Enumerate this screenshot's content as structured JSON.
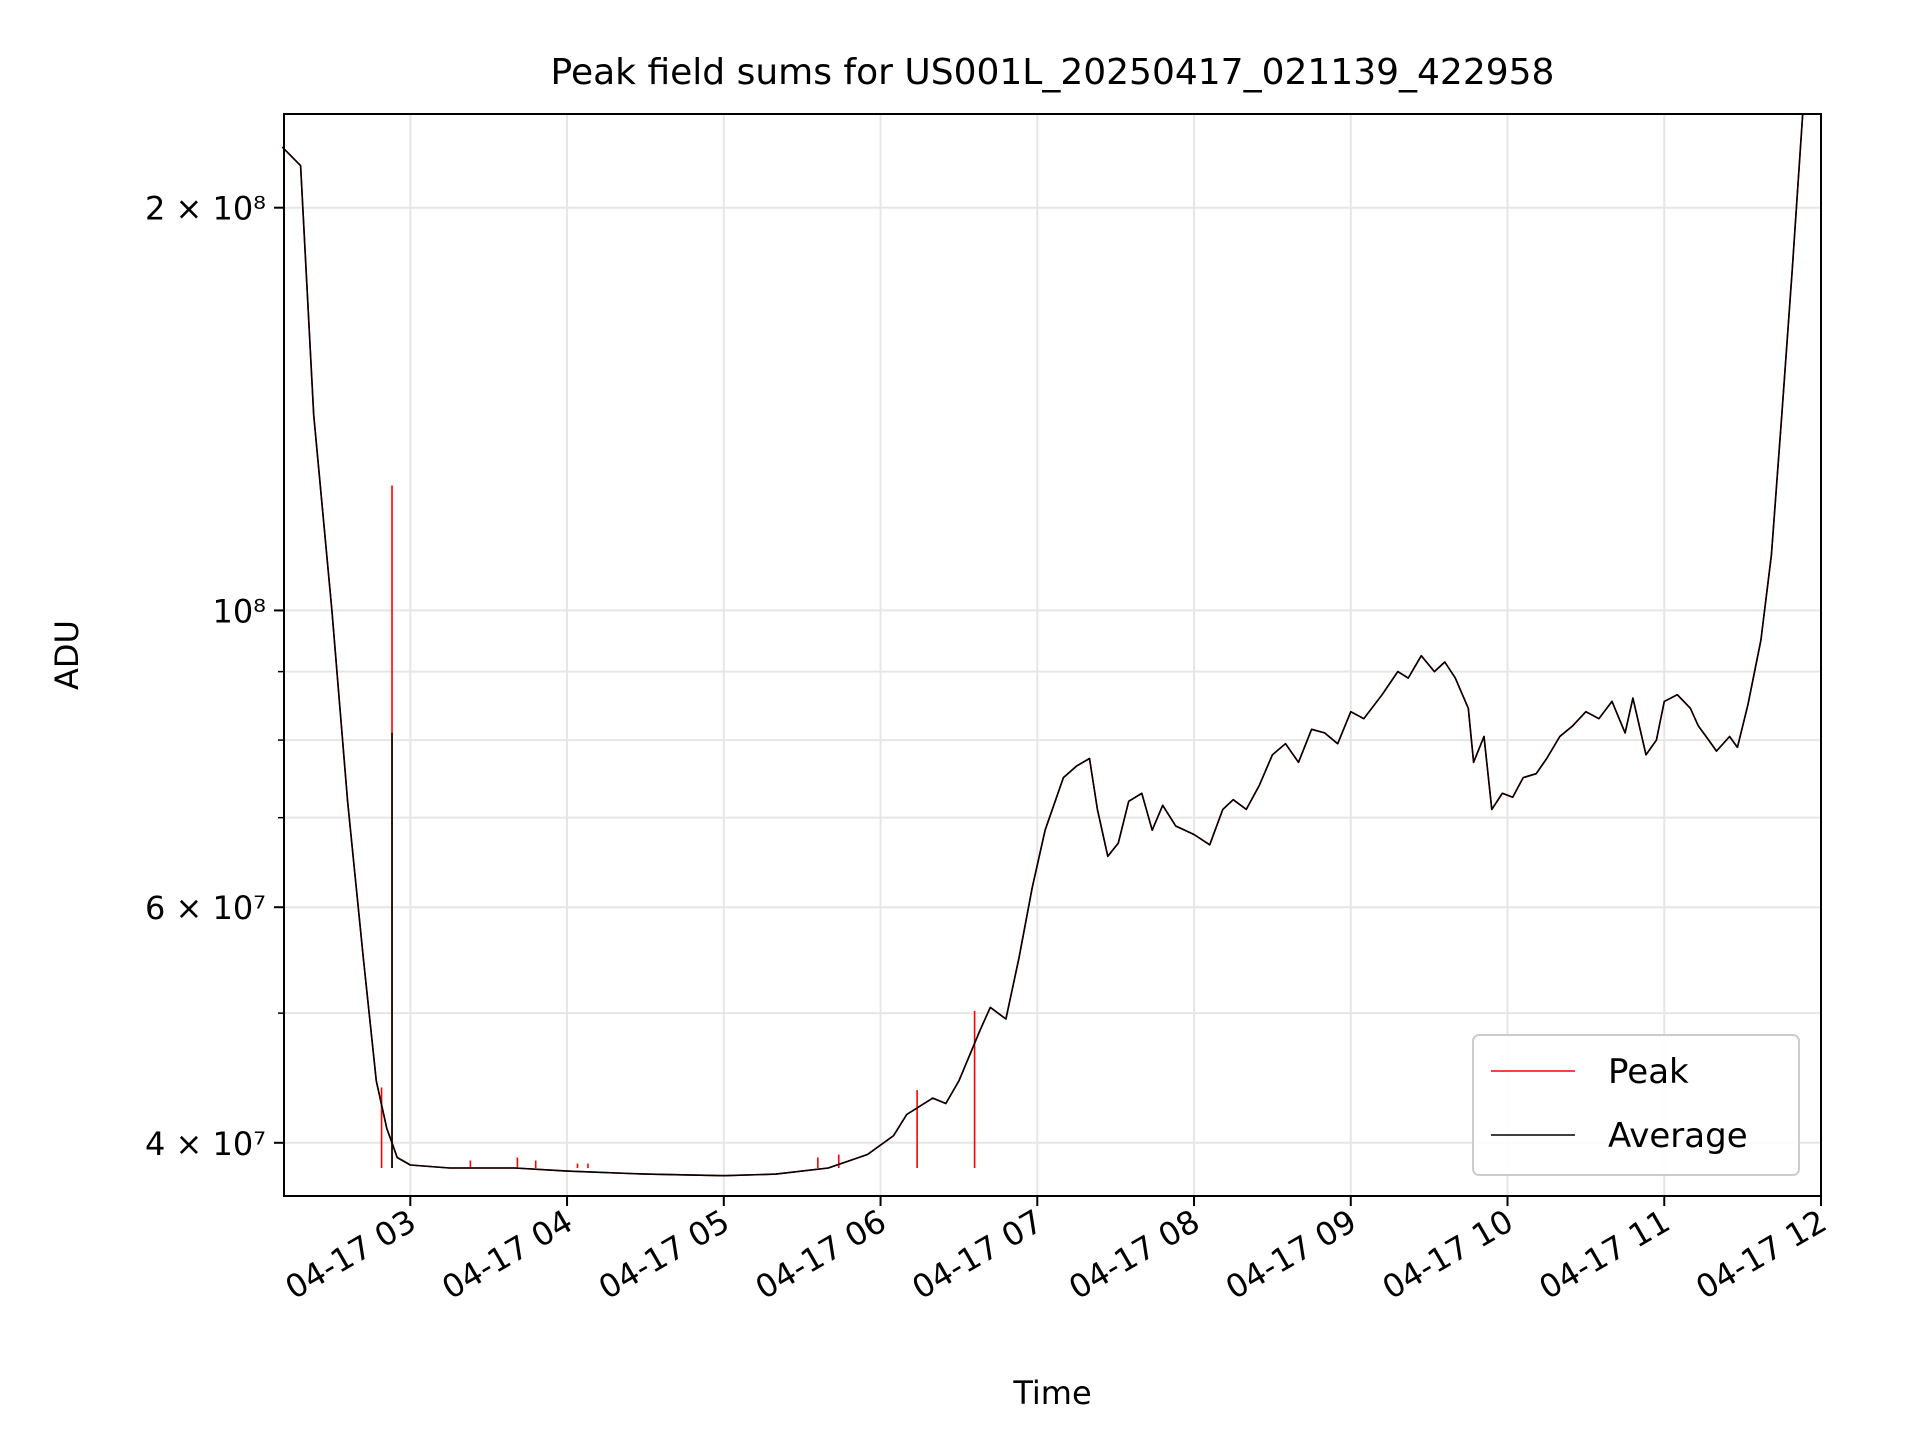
{
  "chart_data": {
    "type": "line",
    "title": "Peak field sums for US001L_20250417_021139_422958",
    "xlabel": "Time",
    "ylabel": "ADU",
    "x_scale": "time",
    "y_scale": "log",
    "xlim": [
      "2025-04-17 02:11:39",
      "2025-04-17 12:00:00"
    ],
    "ylim": [
      36500000,
      235000000
    ],
    "grid": true,
    "legend_position": "lower right",
    "x_ticks": [
      "04-17 03",
      "04-17 04",
      "04-17 05",
      "04-17 06",
      "04-17 07",
      "04-17 08",
      "04-17 09",
      "04-17 10",
      "04-17 11",
      "04-17 12"
    ],
    "y_major_ticks": [
      {
        "value": 40000000,
        "label": "4 × 10⁷"
      },
      {
        "value": 60000000,
        "label": "6 × 10⁷"
      },
      {
        "value": 100000000,
        "label": "10⁸"
      },
      {
        "value": 200000000,
        "label": "2 × 10⁸"
      }
    ],
    "y_minor_ticks": [
      50000000,
      70000000,
      80000000,
      90000000
    ],
    "series": [
      {
        "name": "Peak",
        "color": "#ff0000",
        "points": [
          [
            "2025-04-17 02:11",
            222000000
          ],
          [
            "2025-04-17 02:18",
            215000000
          ],
          [
            "2025-04-17 02:23",
            140000000
          ],
          [
            "2025-04-17 02:30",
            100000000
          ],
          [
            "2025-04-17 02:36",
            72000000
          ],
          [
            "2025-04-17 02:42",
            55000000
          ],
          [
            "2025-04-17 02:47",
            44500000
          ],
          [
            "2025-04-17 02:51",
            41000000
          ],
          [
            "2025-04-17 02:53",
            40000000
          ],
          [
            "2025-04-17 02:55",
            39000000
          ],
          [
            "2025-04-17 03:00",
            38500000
          ],
          [
            "2025-04-17 03:15",
            38300000
          ],
          [
            "2025-04-17 03:40",
            38300000
          ],
          [
            "2025-04-17 04:00",
            38100000
          ],
          [
            "2025-04-17 04:30",
            37900000
          ],
          [
            "2025-04-17 05:00",
            37800000
          ],
          [
            "2025-04-17 05:20",
            37900000
          ],
          [
            "2025-04-17 05:40",
            38300000
          ],
          [
            "2025-04-17 05:55",
            39200000
          ],
          [
            "2025-04-17 06:05",
            40500000
          ],
          [
            "2025-04-17 06:10",
            42000000
          ],
          [
            "2025-04-17 06:20",
            43200000
          ],
          [
            "2025-04-17 06:25",
            42800000
          ],
          [
            "2025-04-17 06:30",
            44500000
          ],
          [
            "2025-04-17 06:38",
            48500000
          ],
          [
            "2025-04-17 06:42",
            50500000
          ],
          [
            "2025-04-17 06:48",
            49500000
          ],
          [
            "2025-04-17 06:53",
            55000000
          ],
          [
            "2025-04-17 06:58",
            62000000
          ],
          [
            "2025-04-17 07:03",
            68500000
          ],
          [
            "2025-04-17 07:10",
            75000000
          ],
          [
            "2025-04-17 07:15",
            76500000
          ],
          [
            "2025-04-17 07:20",
            77500000
          ],
          [
            "2025-04-17 07:23",
            71000000
          ],
          [
            "2025-04-17 07:27",
            65500000
          ],
          [
            "2025-04-17 07:31",
            67000000
          ],
          [
            "2025-04-17 07:35",
            72000000
          ],
          [
            "2025-04-17 07:40",
            73000000
          ],
          [
            "2025-04-17 07:44",
            68500000
          ],
          [
            "2025-04-17 07:48",
            71500000
          ],
          [
            "2025-04-17 07:53",
            69000000
          ],
          [
            "2025-04-17 08:00",
            68000000
          ],
          [
            "2025-04-17 08:06",
            66800000
          ],
          [
            "2025-04-17 08:11",
            71000000
          ],
          [
            "2025-04-17 08:15",
            72200000
          ],
          [
            "2025-04-17 08:20",
            71000000
          ],
          [
            "2025-04-17 08:25",
            74000000
          ],
          [
            "2025-04-17 08:30",
            78000000
          ],
          [
            "2025-04-17 08:35",
            79500000
          ],
          [
            "2025-04-17 08:40",
            77000000
          ],
          [
            "2025-04-17 08:45",
            81500000
          ],
          [
            "2025-04-17 08:50",
            81000000
          ],
          [
            "2025-04-17 08:55",
            79500000
          ],
          [
            "2025-04-17 09:00",
            84000000
          ],
          [
            "2025-04-17 09:05",
            83000000
          ],
          [
            "2025-04-17 09:12",
            86500000
          ],
          [
            "2025-04-17 09:18",
            90000000
          ],
          [
            "2025-04-17 09:22",
            89000000
          ],
          [
            "2025-04-17 09:27",
            92500000
          ],
          [
            "2025-04-17 09:32",
            90000000
          ],
          [
            "2025-04-17 09:36",
            91500000
          ],
          [
            "2025-04-17 09:40",
            89000000
          ],
          [
            "2025-04-17 09:45",
            84500000
          ],
          [
            "2025-04-17 09:47",
            77000000
          ],
          [
            "2025-04-17 09:51",
            80500000
          ],
          [
            "2025-04-17 09:54",
            71000000
          ],
          [
            "2025-04-17 09:58",
            73000000
          ],
          [
            "2025-04-17 10:02",
            72500000
          ],
          [
            "2025-04-17 10:06",
            75000000
          ],
          [
            "2025-04-17 10:11",
            75500000
          ],
          [
            "2025-04-17 10:15",
            77500000
          ],
          [
            "2025-04-17 10:20",
            80500000
          ],
          [
            "2025-04-17 10:25",
            82000000
          ],
          [
            "2025-04-17 10:30",
            84000000
          ],
          [
            "2025-04-17 10:35",
            83000000
          ],
          [
            "2025-04-17 10:40",
            85500000
          ],
          [
            "2025-04-17 10:45",
            81000000
          ],
          [
            "2025-04-17 10:48",
            86000000
          ],
          [
            "2025-04-17 10:53",
            78000000
          ],
          [
            "2025-04-17 10:57",
            80000000
          ],
          [
            "2025-04-17 11:00",
            85500000
          ],
          [
            "2025-04-17 11:05",
            86500000
          ],
          [
            "2025-04-17 11:10",
            84500000
          ],
          [
            "2025-04-17 11:13",
            82000000
          ],
          [
            "2025-04-17 11:17",
            80000000
          ],
          [
            "2025-04-17 11:20",
            78500000
          ],
          [
            "2025-04-17 11:25",
            80500000
          ],
          [
            "2025-04-17 11:28",
            79000000
          ],
          [
            "2025-04-17 11:32",
            85000000
          ],
          [
            "2025-04-17 11:37",
            95000000
          ],
          [
            "2025-04-17 11:41",
            110000000
          ],
          [
            "2025-04-17 11:45",
            140000000
          ],
          [
            "2025-04-17 11:49",
            180000000
          ],
          [
            "2025-04-17 11:53",
            235000000
          ]
        ],
        "spikes": [
          [
            "2025-04-17 02:49",
            44000000
          ],
          [
            "2025-04-17 02:53",
            124000000
          ],
          [
            "2025-04-17 03:23",
            38800000
          ],
          [
            "2025-04-17 03:41",
            39000000
          ],
          [
            "2025-04-17 03:48",
            38800000
          ],
          [
            "2025-04-17 04:04",
            38600000
          ],
          [
            "2025-04-17 04:08",
            38600000
          ],
          [
            "2025-04-17 05:36",
            39000000
          ],
          [
            "2025-04-17 05:44",
            39200000
          ],
          [
            "2025-04-17 06:14",
            43800000
          ],
          [
            "2025-04-17 06:36",
            50200000
          ]
        ]
      },
      {
        "name": "Average",
        "color": "#000000",
        "points": [
          [
            "2025-04-17 02:11",
            222000000
          ],
          [
            "2025-04-17 02:18",
            215000000
          ],
          [
            "2025-04-17 02:23",
            140000000
          ],
          [
            "2025-04-17 02:30",
            100000000
          ],
          [
            "2025-04-17 02:36",
            72000000
          ],
          [
            "2025-04-17 02:42",
            55000000
          ],
          [
            "2025-04-17 02:47",
            44500000
          ],
          [
            "2025-04-17 02:51",
            41000000
          ],
          [
            "2025-04-17 02:53",
            40000000
          ],
          [
            "2025-04-17 02:55",
            39000000
          ],
          [
            "2025-04-17 03:00",
            38500000
          ],
          [
            "2025-04-17 03:15",
            38300000
          ],
          [
            "2025-04-17 03:40",
            38300000
          ],
          [
            "2025-04-17 04:00",
            38100000
          ],
          [
            "2025-04-17 04:30",
            37900000
          ],
          [
            "2025-04-17 05:00",
            37800000
          ],
          [
            "2025-04-17 05:20",
            37900000
          ],
          [
            "2025-04-17 05:40",
            38300000
          ],
          [
            "2025-04-17 05:55",
            39200000
          ],
          [
            "2025-04-17 06:05",
            40500000
          ],
          [
            "2025-04-17 06:10",
            42000000
          ],
          [
            "2025-04-17 06:20",
            43200000
          ],
          [
            "2025-04-17 06:25",
            42800000
          ],
          [
            "2025-04-17 06:30",
            44500000
          ],
          [
            "2025-04-17 06:38",
            48500000
          ],
          [
            "2025-04-17 06:42",
            50500000
          ],
          [
            "2025-04-17 06:48",
            49500000
          ],
          [
            "2025-04-17 06:53",
            55000000
          ],
          [
            "2025-04-17 06:58",
            62000000
          ],
          [
            "2025-04-17 07:03",
            68500000
          ],
          [
            "2025-04-17 07:10",
            75000000
          ],
          [
            "2025-04-17 07:15",
            76500000
          ],
          [
            "2025-04-17 07:20",
            77500000
          ],
          [
            "2025-04-17 07:23",
            71000000
          ],
          [
            "2025-04-17 07:27",
            65500000
          ],
          [
            "2025-04-17 07:31",
            67000000
          ],
          [
            "2025-04-17 07:35",
            72000000
          ],
          [
            "2025-04-17 07:40",
            73000000
          ],
          [
            "2025-04-17 07:44",
            68500000
          ],
          [
            "2025-04-17 07:48",
            71500000
          ],
          [
            "2025-04-17 07:53",
            69000000
          ],
          [
            "2025-04-17 08:00",
            68000000
          ],
          [
            "2025-04-17 08:06",
            66800000
          ],
          [
            "2025-04-17 08:11",
            71000000
          ],
          [
            "2025-04-17 08:15",
            72200000
          ],
          [
            "2025-04-17 08:20",
            71000000
          ],
          [
            "2025-04-17 08:25",
            74000000
          ],
          [
            "2025-04-17 08:30",
            78000000
          ],
          [
            "2025-04-17 08:35",
            79500000
          ],
          [
            "2025-04-17 08:40",
            77000000
          ],
          [
            "2025-04-17 08:45",
            81500000
          ],
          [
            "2025-04-17 08:50",
            81000000
          ],
          [
            "2025-04-17 08:55",
            79500000
          ],
          [
            "2025-04-17 09:00",
            84000000
          ],
          [
            "2025-04-17 09:05",
            83000000
          ],
          [
            "2025-04-17 09:12",
            86500000
          ],
          [
            "2025-04-17 09:18",
            90000000
          ],
          [
            "2025-04-17 09:22",
            89000000
          ],
          [
            "2025-04-17 09:27",
            92500000
          ],
          [
            "2025-04-17 09:32",
            90000000
          ],
          [
            "2025-04-17 09:36",
            91500000
          ],
          [
            "2025-04-17 09:40",
            89000000
          ],
          [
            "2025-04-17 09:45",
            84500000
          ],
          [
            "2025-04-17 09:47",
            77000000
          ],
          [
            "2025-04-17 09:51",
            80500000
          ],
          [
            "2025-04-17 09:54",
            71000000
          ],
          [
            "2025-04-17 09:58",
            73000000
          ],
          [
            "2025-04-17 10:02",
            72500000
          ],
          [
            "2025-04-17 10:06",
            75000000
          ],
          [
            "2025-04-17 10:11",
            75500000
          ],
          [
            "2025-04-17 10:15",
            77500000
          ],
          [
            "2025-04-17 10:20",
            80500000
          ],
          [
            "2025-04-17 10:25",
            82000000
          ],
          [
            "2025-04-17 10:30",
            84000000
          ],
          [
            "2025-04-17 10:35",
            83000000
          ],
          [
            "2025-04-17 10:40",
            85500000
          ],
          [
            "2025-04-17 10:45",
            81000000
          ],
          [
            "2025-04-17 10:48",
            86000000
          ],
          [
            "2025-04-17 10:53",
            78000000
          ],
          [
            "2025-04-17 10:57",
            80000000
          ],
          [
            "2025-04-17 11:00",
            85500000
          ],
          [
            "2025-04-17 11:05",
            86500000
          ],
          [
            "2025-04-17 11:10",
            84500000
          ],
          [
            "2025-04-17 11:13",
            82000000
          ],
          [
            "2025-04-17 11:17",
            80000000
          ],
          [
            "2025-04-17 11:20",
            78500000
          ],
          [
            "2025-04-17 11:25",
            80500000
          ],
          [
            "2025-04-17 11:28",
            79000000
          ],
          [
            "2025-04-17 11:32",
            85000000
          ],
          [
            "2025-04-17 11:37",
            95000000
          ],
          [
            "2025-04-17 11:41",
            110000000
          ],
          [
            "2025-04-17 11:45",
            140000000
          ],
          [
            "2025-04-17 11:49",
            180000000
          ],
          [
            "2025-04-17 11:53",
            235000000
          ]
        ],
        "spikes": [
          [
            "2025-04-17 02:53",
            81000000
          ]
        ]
      }
    ]
  }
}
